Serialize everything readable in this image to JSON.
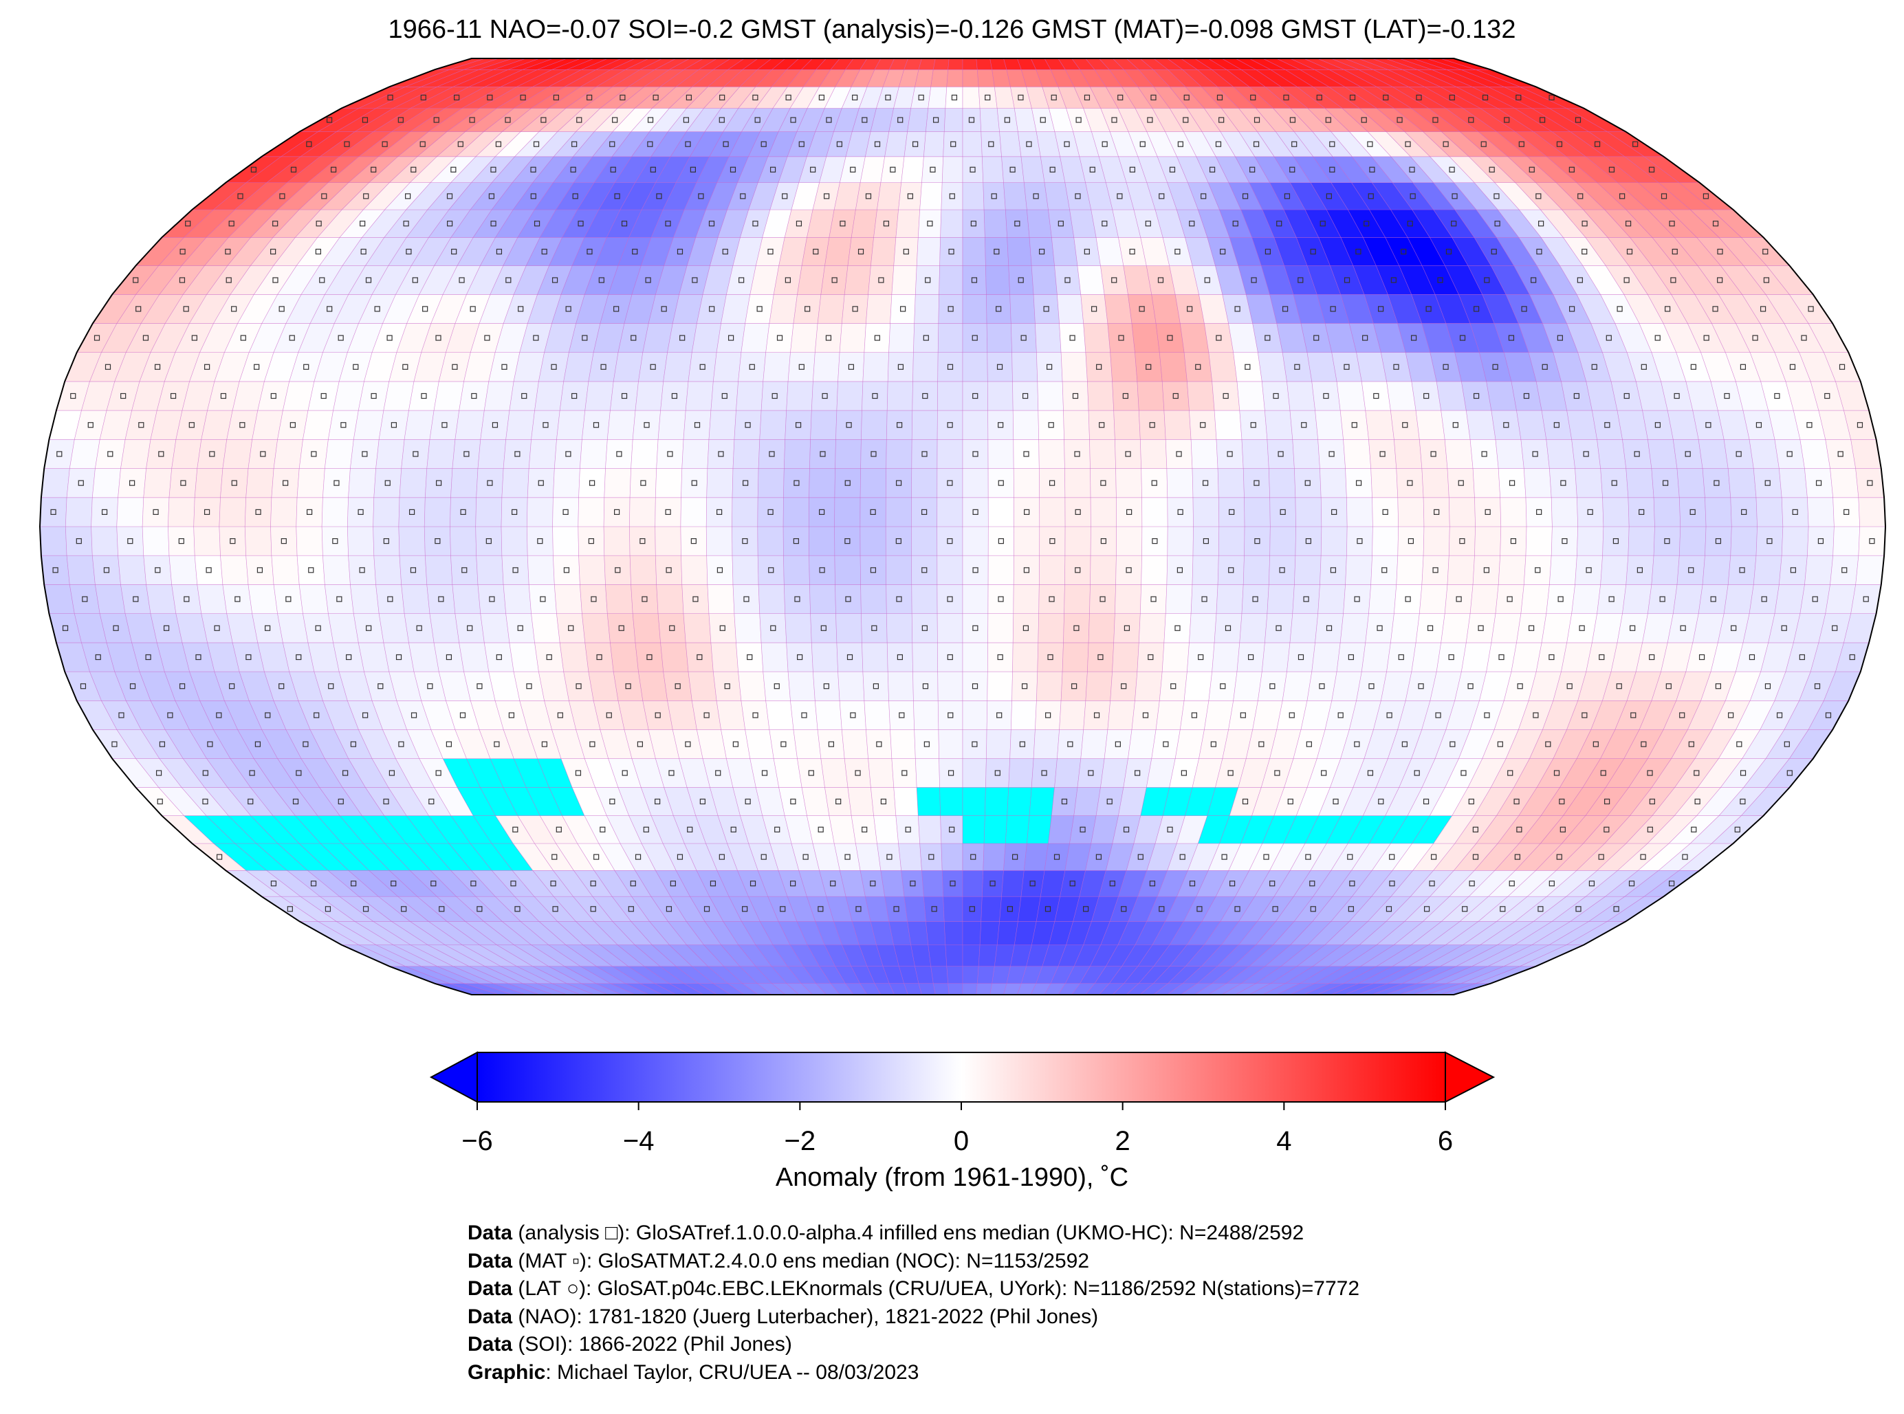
{
  "title": "1966-11 NAO=-0.07 SOI=-0.2 GMST (analysis)=-0.126 GMST (MAT)=-0.098 GMST (LAT)=-0.132",
  "chart_data": {
    "type": "heatmap",
    "projection": "Robinson",
    "grid_resolution_deg": 5,
    "colormap": "bwr",
    "missing_color": "#00ffff",
    "value_range": [
      -6,
      6
    ],
    "anomaly_features": [
      {
        "lon": -88,
        "lat": 60,
        "radius": 18,
        "value": -4.5
      },
      {
        "lon": 95,
        "lat": 60,
        "radius": 25,
        "value": -4
      },
      {
        "lon": 105,
        "lat": 45,
        "radius": 12,
        "value": -2.5
      },
      {
        "lon": 65,
        "lat": 45,
        "radius": 10,
        "value": -2.5
      },
      {
        "lon": 10,
        "lat": 48,
        "radius": 14,
        "value": -2
      },
      {
        "lon": 40,
        "lat": 35,
        "radius": 12,
        "value": 3
      },
      {
        "lon": 45,
        "lat": 65,
        "radius": 14,
        "value": 2.5
      },
      {
        "lon": 155,
        "lat": 75,
        "radius": 22,
        "value": 5
      },
      {
        "lon": -160,
        "lat": 82,
        "radius": 20,
        "value": 4
      },
      {
        "lon": -100,
        "lat": 38,
        "radius": 12,
        "value": 1.5
      },
      {
        "lon": -30,
        "lat": 55,
        "radius": 15,
        "value": 2
      },
      {
        "lon": 85,
        "lat": 22,
        "radius": 12,
        "value": 1.5
      },
      {
        "lon": -62,
        "lat": -25,
        "radius": 12,
        "value": 1.5
      },
      {
        "lon": 25,
        "lat": -25,
        "radius": 10,
        "value": 1.2
      },
      {
        "lon": 140,
        "lat": -45,
        "radius": 18,
        "value": 1.5
      },
      {
        "lon": 20,
        "lat": -72,
        "radius": 15,
        "value": -3
      },
      {
        "lon": -160,
        "lat": -30,
        "radius": 20,
        "value": -1.2
      },
      {
        "lon": -30,
        "lat": 5,
        "radius": 20,
        "value": -0.8
      },
      {
        "lon": 170,
        "lat": 0,
        "radius": 20,
        "value": -0.8
      },
      {
        "lon": -170,
        "lat": 10,
        "radius": 20,
        "value": 1
      }
    ],
    "missing_regions": [
      {
        "lon": [
          -175,
          -105
        ],
        "lat": [
          -60,
          -50
        ]
      },
      {
        "lon": [
          -110,
          -85
        ],
        "lat": [
          -50,
          -40
        ]
      },
      {
        "lon": [
          -70,
          -70
        ],
        "lat": [
          -40,
          -40
        ]
      },
      {
        "lon": [
          -10,
          20
        ],
        "lat": [
          -50,
          -45
        ]
      },
      {
        "lon": [
          0,
          20
        ],
        "lat": [
          -55,
          -50
        ]
      },
      {
        "lon": [
          40,
          60
        ],
        "lat": [
          -50,
          -45
        ]
      },
      {
        "lon": [
          55,
          110
        ],
        "lat": [
          -55,
          -50
        ]
      }
    ],
    "colorbar": {
      "ticks": [
        "−6",
        "−4",
        "−2",
        "0",
        "2",
        "4",
        "6"
      ],
      "tick_values": [
        -6,
        -4,
        -2,
        0,
        2,
        4,
        6
      ],
      "label": "Anomaly (from 1961-1990), ˚C",
      "extend": "both"
    }
  },
  "footer": [
    {
      "bold": "Data",
      "text": " (analysis □): GloSATref.1.0.0.0-alpha.4 infilled ens median (UKMO-HC): N=2488/2592"
    },
    {
      "bold": "Data",
      "text": " (MAT ▫): GloSATMAT.2.4.0.0 ens median (NOC): N=1153/2592"
    },
    {
      "bold": "Data",
      "text": " (LAT ○): GloSAT.p04c.EBC.LEKnormals (CRU/UEA, UYork): N=1186/2592 N(stations)=7772"
    },
    {
      "bold": "Data",
      "text": " (NAO): 1781-1820 (Juerg Luterbacher), 1821-2022 (Phil Jones)"
    },
    {
      "bold": "Data",
      "text": " (SOI): 1866-2022 (Phil Jones)"
    },
    {
      "bold": "Graphic",
      "text": ": Michael Taylor, CRU/UEA -- 08/03/2023"
    }
  ]
}
